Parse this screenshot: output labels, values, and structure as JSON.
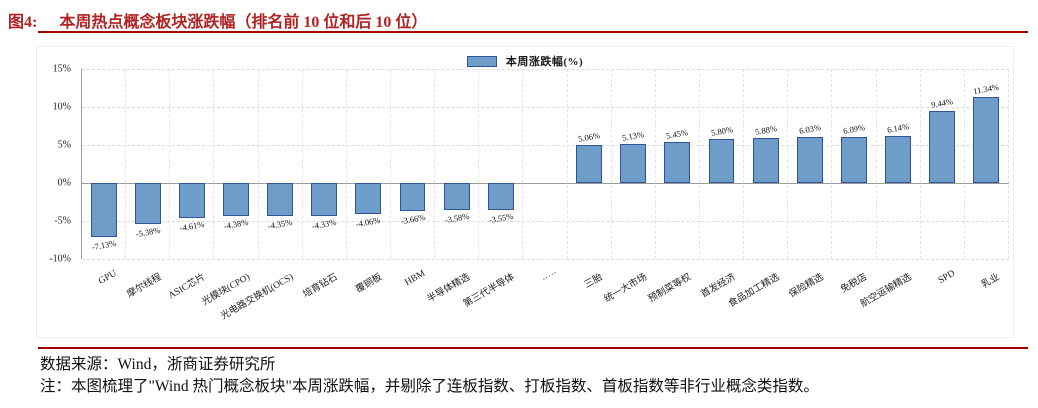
{
  "figure": {
    "label": "图4:",
    "title": "本周热点概念板块涨跌幅（排名前 10 位和后 10 位）"
  },
  "legend": {
    "label": "本周涨跌幅(%)"
  },
  "chart_data": {
    "type": "bar",
    "title": "本周热点概念板块涨跌幅（排名前 10 位和后 10 位）",
    "series_name": "本周涨跌幅(%)",
    "legend_position": "top-center",
    "grid": true,
    "ylim": [
      -10,
      15
    ],
    "yticks": [
      15,
      10,
      5,
      0,
      -5,
      -10
    ],
    "ytick_suffix": "%",
    "categories": [
      "GPU",
      "摩尔线程",
      "ASIC芯片",
      "光模块(CPO)",
      "光电路交换机(OCS)",
      "培育钻石",
      "覆铜板",
      "HBM",
      "半导体精选",
      "第三代半导体",
      "·····",
      "三胎",
      "统一大市场",
      "预制菜等权",
      "首发经济",
      "食品加工精选",
      "保险精选",
      "免税店",
      "航空运输精选",
      "SPD",
      "乳业"
    ],
    "values": [
      -7.13,
      -5.38,
      -4.61,
      -4.38,
      -4.35,
      -4.33,
      -4.06,
      -3.66,
      -3.58,
      -3.55,
      null,
      5.06,
      5.13,
      5.45,
      5.8,
      5.88,
      6.03,
      6.09,
      6.14,
      9.44,
      11.34
    ],
    "value_labels": [
      "-7.13%",
      "-5.38%",
      "-4.61%",
      "-4.38%",
      "-4.35%",
      "-4.33%",
      "-4.06%",
      "-3.66%",
      "-3.58%",
      "-3.55%",
      "",
      "5.06%",
      "5.13%",
      "5.45%",
      "5.80%",
      "5.88%",
      "6.03%",
      "6.09%",
      "6.14%",
      "9.44%",
      "11.34%"
    ],
    "bar_fill": "#6F9DC9",
    "bar_border": "#2F5597"
  },
  "colors": {
    "title_red": "#B22222",
    "rule_red": "#A40000",
    "gridline": "#DCDCDC",
    "axis": "#9B9B9B"
  },
  "footer": {
    "source": "数据来源：Wind，浙商证券研究所",
    "note": "注：本图梳理了\"Wind 热门概念板块\"本周涨跌幅，并剔除了连板指数、打板指数、首板指数等非行业概念类指数。"
  }
}
